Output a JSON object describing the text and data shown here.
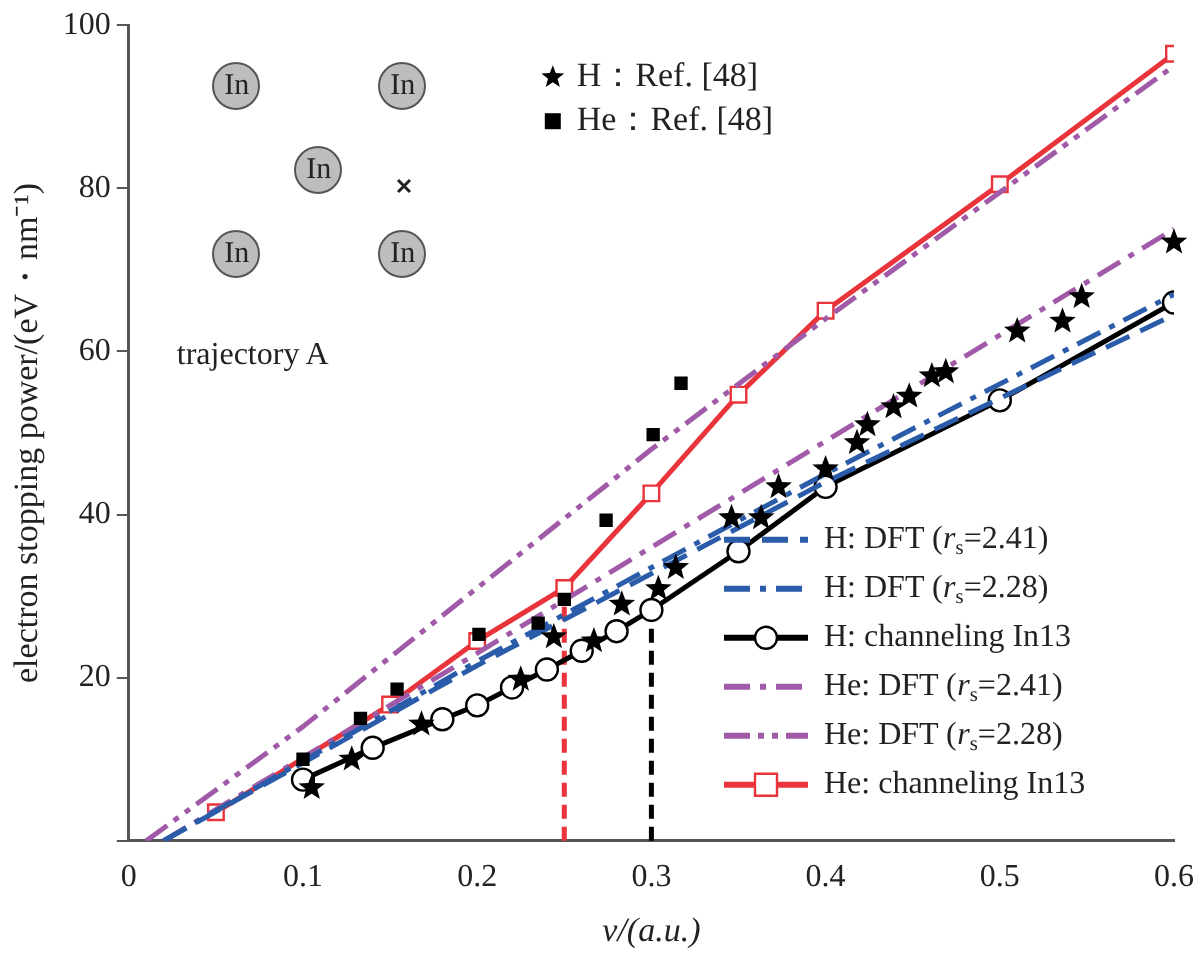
{
  "chart_data": {
    "type": "line",
    "xlabel": "v/(a.u.)",
    "ylabel": "electron stopping power/(eV・nm⁻¹)",
    "xlim": [
      0,
      0.6
    ],
    "xticks": [
      0,
      0.1,
      0.2,
      0.3,
      0.4,
      0.5,
      0.6
    ],
    "ylim": [
      0,
      100
    ],
    "yticks": [
      {
        "value": 0,
        "label": null
      },
      20,
      40,
      60,
      80,
      100
    ],
    "grid": false,
    "legend": "right",
    "annotations": [
      "In",
      "In",
      "In",
      "In",
      "In",
      "trajectory A"
    ],
    "ref_lines": [
      {
        "axis": "x",
        "value": 0.25,
        "label": null,
        "color": "#e8343a",
        "line_style": "dashed"
      },
      {
        "axis": "x",
        "value": 0.3,
        "label": null,
        "color": "#000000",
        "line_style": "dashed"
      }
    ],
    "series": [
      {
        "name": "H：Ref. [48]",
        "type": "scatter",
        "marker": "star",
        "color": "#000000",
        "x": [
          0.105,
          0.128,
          0.168,
          0.225,
          0.244,
          0.267,
          0.283,
          0.304,
          0.314,
          0.346,
          0.363,
          0.373,
          0.4,
          0.418,
          0.424,
          0.439,
          0.448,
          0.461,
          0.469,
          0.51,
          0.536,
          0.547,
          0.6
        ],
        "values": [
          6.5,
          10,
          14.3,
          19.8,
          25,
          24.5,
          29,
          30.9,
          33.5,
          39.6,
          39.6,
          43.4,
          45.6,
          48.8,
          51,
          53.2,
          54.5,
          57,
          57.5,
          62.5,
          63.7,
          66.7,
          73.4
        ]
      },
      {
        "name": "He：Ref. [48]",
        "type": "scatter",
        "marker": "square",
        "color": "#000000",
        "x": [
          0.1,
          0.133,
          0.154,
          0.201,
          0.235,
          0.25,
          0.274,
          0.301,
          0.317
        ],
        "values": [
          10,
          15,
          18.6,
          25.3,
          26.7,
          29.6,
          39.3,
          49.8,
          56.1
        ]
      },
      {
        "name": "H: DFT (r$_{s}$=2.41)",
        "type": "line",
        "marker": "none",
        "line_style": "dashed",
        "color": "#2a5caa",
        "x": [
          0.02,
          0.2,
          0.4,
          0.6
        ],
        "values": [
          0,
          21.5,
          44,
          64.5
        ]
      },
      {
        "name": "H: DFT (r$_{s}$=2.28)",
        "type": "line",
        "marker": "none",
        "line_style": "dashdot",
        "color": "#2a5caa",
        "x": [
          0.02,
          0.2,
          0.4,
          0.6
        ],
        "values": [
          0,
          22,
          45,
          67
        ]
      },
      {
        "name": "H: channeling In13",
        "type": "line",
        "marker": "circle",
        "line_style": "solid",
        "color": "#000000",
        "x": [
          0.1,
          0.14,
          0.18,
          0.2,
          0.22,
          0.24,
          0.26,
          0.28,
          0.3,
          0.35,
          0.4,
          0.5,
          0.6
        ],
        "values": [
          7.5,
          11.4,
          14.9,
          16.6,
          18.8,
          21,
          23.3,
          25.7,
          28.3,
          35.5,
          43.4,
          54,
          66
        ]
      },
      {
        "name": "He: DFT (r$_{s}$=2.41)",
        "type": "line",
        "marker": "none",
        "line_style": "dashdot",
        "color": "#a05aa8",
        "x": [
          0.02,
          0.2,
          0.4,
          0.6
        ],
        "values": [
          0,
          23,
          49,
          75
        ]
      },
      {
        "name": "He: DFT (r$_{s}$=2.28)",
        "type": "line",
        "marker": "none",
        "line_style": "dashdotdot",
        "color": "#a05aa8",
        "x": [
          0.01,
          0.1,
          0.2,
          0.3,
          0.4,
          0.5,
          0.6
        ],
        "values": [
          0,
          14,
          31,
          48,
          64,
          79.5,
          95
        ]
      },
      {
        "name": "He: channeling In13",
        "type": "line",
        "marker": "square",
        "line_style": "solid",
        "color": "#e8343a",
        "x": [
          0.05,
          0.15,
          0.2,
          0.25,
          0.3,
          0.35,
          0.4,
          0.5,
          0.6
        ],
        "values": [
          3.5,
          16.7,
          24.5,
          31,
          42.6,
          54.7,
          65,
          80.5,
          96.5
        ]
      }
    ]
  }
}
